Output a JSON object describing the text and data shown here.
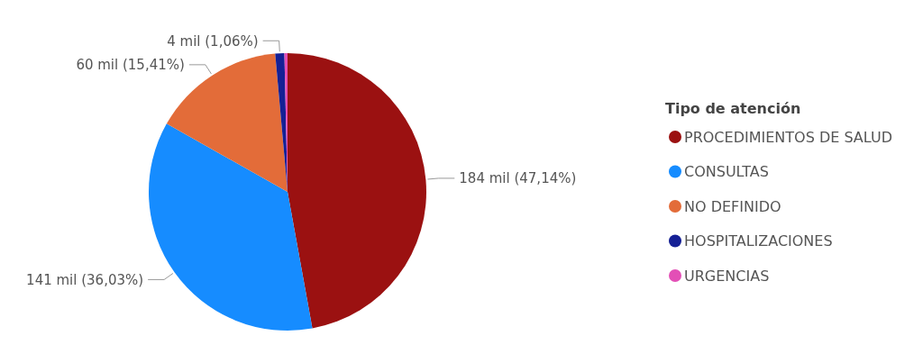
{
  "chart_data": {
    "type": "pie",
    "legend_title": "Tipo de atención",
    "categories": [
      "PROCEDIMIENTOS DE SALUD",
      "CONSULTAS",
      "NO DEFINIDO",
      "HOSPITALIZACIONES",
      "URGENCIAS"
    ],
    "values": [
      47.14,
      36.03,
      15.41,
      1.06,
      0.36
    ],
    "colors": [
      "#9b1111",
      "#168cff",
      "#e36c39",
      "#152095",
      "#e34fb6"
    ],
    "value_labels": [
      "184 mil (47,14%)",
      "141 mil (36,03%)",
      "60 mil (15,41%)",
      "4 mil (1,06%)",
      null
    ],
    "legend": "right"
  }
}
